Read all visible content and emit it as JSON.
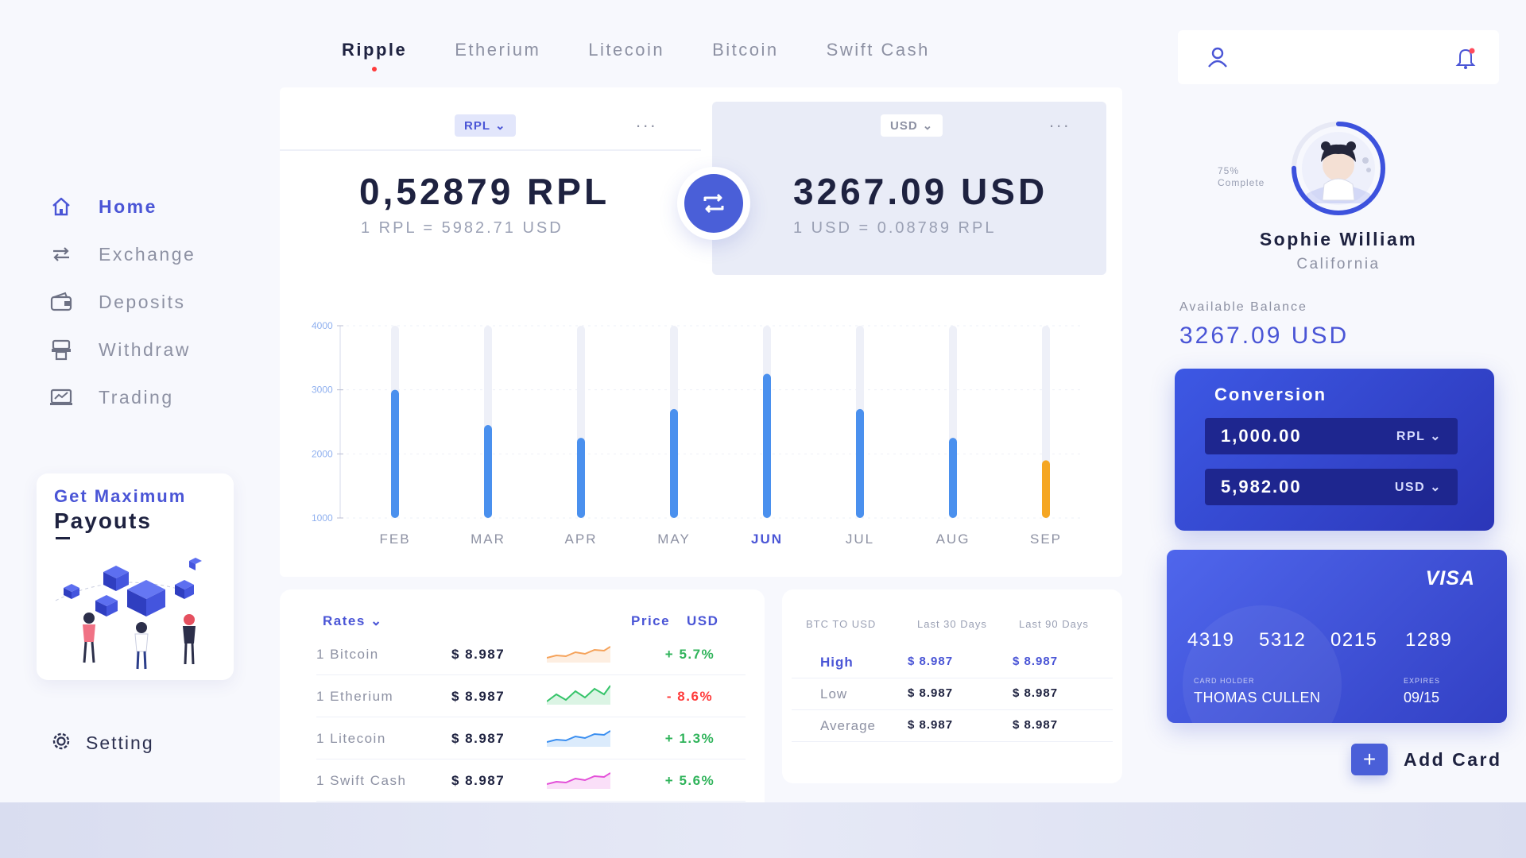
{
  "tabs": [
    "Ripple",
    "Etherium",
    "Litecoin",
    "Bitcoin",
    "Swift Cash"
  ],
  "active_tab": 0,
  "nav": [
    {
      "label": "Home",
      "icon": "home-icon"
    },
    {
      "label": "Exchange",
      "icon": "exchange-icon"
    },
    {
      "label": "Deposits",
      "icon": "wallet-icon"
    },
    {
      "label": "Withdraw",
      "icon": "atm-icon"
    },
    {
      "label": "Trading",
      "icon": "trading-icon"
    }
  ],
  "active_nav": 0,
  "promo": {
    "line1": "Get Maximum",
    "line2": "Payouts"
  },
  "setting": {
    "label": "Setting",
    "icon": "gear-icon"
  },
  "converter": {
    "from_select": "RPL",
    "from_amount": "0,52879 RPL",
    "from_rate": "1 RPL = 5982.71 USD",
    "to_select": "USD",
    "to_amount": "3267.09 USD",
    "to_rate": "1 USD = 0.08789 RPL",
    "more": "..."
  },
  "chart_data": {
    "type": "bar",
    "categories": [
      "FEB",
      "MAR",
      "APR",
      "MAY",
      "JUN",
      "JUL",
      "AUG",
      "SEP"
    ],
    "values": [
      3000,
      2450,
      2250,
      2700,
      3250,
      2700,
      2250,
      1900
    ],
    "highlight_category": "JUN",
    "highlight_colors": {
      "default": "#4a90ee",
      "last": "#f5a623",
      "track": "#eef0f8"
    },
    "yticks": [
      "4000",
      "3000",
      "2000",
      "1000"
    ],
    "ylim": [
      1000,
      4000
    ]
  },
  "rates": {
    "header_left": "Rates",
    "header_price": "Price",
    "header_currency": "USD",
    "rows": [
      {
        "name": "1 Bitcoin",
        "price": "$ 8.987",
        "change": "+ 5.7%",
        "color": "#f5a25a"
      },
      {
        "name": "1 Etherium",
        "price": "$ 8.987",
        "change": "- 8.6%",
        "color": "#36c46a"
      },
      {
        "name": "1 Litecoin",
        "price": "$ 8.987",
        "change": "+ 1.3%",
        "color": "#3a8ef0"
      },
      {
        "name": "1 Swift Cash",
        "price": "$ 8.987",
        "change": "+ 5.6%",
        "color": "#e34fd8"
      }
    ]
  },
  "stats": {
    "headers": [
      "BTC TO USD",
      "Last 30 Days",
      "Last 90 Days"
    ],
    "rows": [
      {
        "label": "High",
        "d30": "$ 8.987",
        "d90": "$ 8.987"
      },
      {
        "label": "Low",
        "d30": "$ 8.987",
        "d90": "$ 8.987"
      },
      {
        "label": "Average",
        "d30": "$ 8.987",
        "d90": "$ 8.987"
      }
    ]
  },
  "profile": {
    "progress_pct": "75%",
    "progress_label": "Complete",
    "progress_value": 0.75,
    "name": "Sophie William",
    "location": "California",
    "balance_label": "Available Balance",
    "balance_value": "3267.09 USD"
  },
  "conversion_card": {
    "title": "Conversion",
    "amount1": "1,000.00",
    "currency1": "RPL",
    "amount2": "5,982.00",
    "currency2": "USD"
  },
  "card": {
    "brand": "VISA",
    "numbers": [
      "4319",
      "5312",
      "0215",
      "1289"
    ],
    "holder_label": "CARD HOLDER",
    "holder": "THOMAS CULLEN",
    "expires_label": "EXPIRES",
    "expires": "09/15"
  },
  "add_card_label": "Add Card"
}
